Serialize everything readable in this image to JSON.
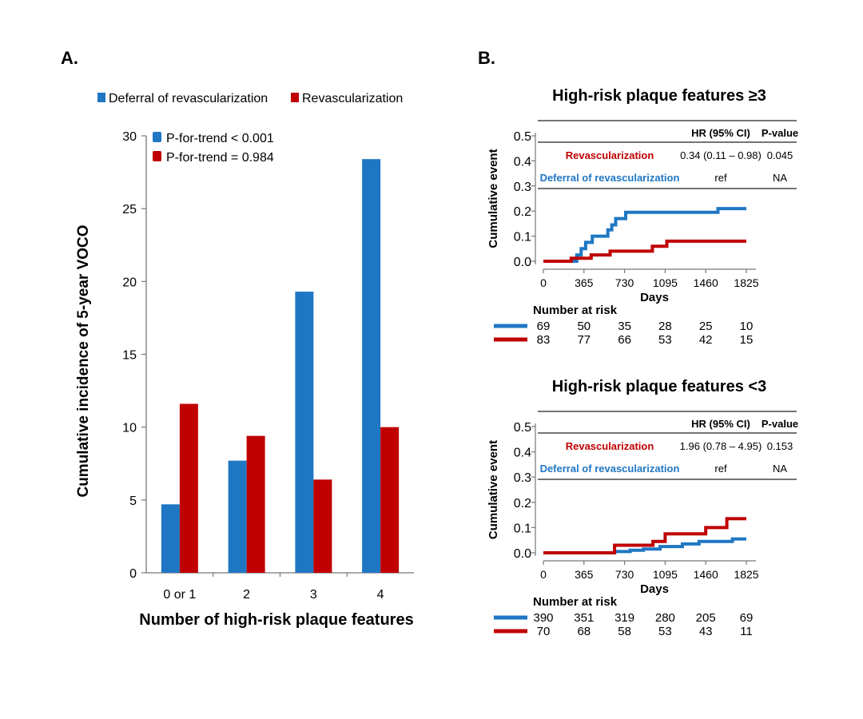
{
  "colors": {
    "blue": "#1f77c4",
    "red": "#c00000",
    "axis": "#777777"
  },
  "panel_a": {
    "label": "A.",
    "legend": [
      "Deferral of revascularization",
      "Revascularization"
    ],
    "trend": [
      "P-for-trend < 0.001",
      "P-for-trend = 0.984"
    ]
  },
  "panel_b": {
    "label": "B.",
    "table_headers": {
      "hr": "HR (95% CI)",
      "p": "P-value"
    },
    "at_risk_label": "Number at risk"
  },
  "chart_data": [
    {
      "type": "bar",
      "title": "",
      "xlabel": "Number of high-risk plaque features",
      "ylabel": "Cumulative incidence of 5-year VOCO",
      "categories": [
        "0 or 1",
        "2",
        "3",
        "4"
      ],
      "ylim": [
        0,
        30
      ],
      "yticks": [
        0,
        5,
        10,
        15,
        20,
        25,
        30
      ],
      "series": [
        {
          "name": "Deferral of revascularization",
          "color": "#1f77c4",
          "values": [
            4.7,
            7.7,
            19.3,
            28.4
          ]
        },
        {
          "name": "Revascularization",
          "color": "#c00000",
          "values": [
            11.6,
            9.4,
            6.4,
            10.0
          ]
        }
      ],
      "grid": false,
      "legend_position": "top"
    },
    {
      "type": "line",
      "title": "High-risk plaque features ≥3",
      "xlabel": "Days",
      "ylabel": "Cumulative event",
      "xlim": [
        0,
        1825
      ],
      "ylim": [
        0,
        0.5
      ],
      "xticks": [
        0,
        365,
        730,
        1095,
        1460,
        1825
      ],
      "yticks": [
        "0.0",
        "0.1",
        "0.2",
        "0.3",
        "0.4",
        "0.5"
      ],
      "table": [
        {
          "group": "Revascularization",
          "hr": "0.34 (0.11 – 0.98)",
          "p": "0.045"
        },
        {
          "group": "Deferral of revascularization",
          "hr": "ref",
          "p": "NA"
        }
      ],
      "series": [
        {
          "name": "Deferral of revascularization",
          "color": "#1f77c4",
          "x": [
            0,
            300,
            300,
            340,
            340,
            380,
            380,
            440,
            440,
            580,
            580,
            615,
            615,
            650,
            650,
            740,
            740,
            1570,
            1570,
            1825
          ],
          "y": [
            0,
            0,
            0.025,
            0.025,
            0.05,
            0.05,
            0.075,
            0.075,
            0.1,
            0.1,
            0.125,
            0.125,
            0.145,
            0.145,
            0.17,
            0.17,
            0.195,
            0.195,
            0.21,
            0.21
          ]
        },
        {
          "name": "Revascularization",
          "color": "#c00000",
          "x": [
            0,
            250,
            250,
            430,
            430,
            600,
            600,
            980,
            980,
            1110,
            1110,
            1825
          ],
          "y": [
            0,
            0,
            0.012,
            0.012,
            0.025,
            0.025,
            0.04,
            0.04,
            0.06,
            0.06,
            0.08,
            0.08
          ]
        }
      ],
      "at_risk": [
        {
          "series": "Deferral of revascularization",
          "color": "#1f77c4",
          "values": [
            "69",
            "50",
            "35",
            "28",
            "25",
            "10"
          ]
        },
        {
          "series": "Revascularization",
          "color": "#c00000",
          "values": [
            "83",
            "77",
            "66",
            "53",
            "42",
            "15"
          ]
        }
      ]
    },
    {
      "type": "line",
      "title": "High-risk plaque features <3",
      "xlabel": "Days",
      "ylabel": "Cumulative event",
      "xlim": [
        0,
        1825
      ],
      "ylim": [
        0,
        0.5
      ],
      "xticks": [
        0,
        365,
        730,
        1095,
        1460,
        1825
      ],
      "yticks": [
        "0.0",
        "0.1",
        "0.2",
        "0.3",
        "0.4",
        "0.5"
      ],
      "table": [
        {
          "group": "Revascularization",
          "hr": "1.96 (0.78 – 4.95)",
          "p": "0.153"
        },
        {
          "group": "Deferral of revascularization",
          "hr": "ref",
          "p": "NA"
        }
      ],
      "series": [
        {
          "name": "Deferral of revascularization",
          "color": "#1f77c4",
          "x": [
            0,
            640,
            640,
            780,
            780,
            900,
            900,
            1050,
            1050,
            1250,
            1250,
            1400,
            1400,
            1700,
            1700,
            1825
          ],
          "y": [
            0,
            0,
            0.005,
            0.005,
            0.01,
            0.01,
            0.015,
            0.015,
            0.025,
            0.025,
            0.035,
            0.035,
            0.045,
            0.045,
            0.055,
            0.055
          ]
        },
        {
          "name": "Revascularization",
          "color": "#c00000",
          "x": [
            0,
            640,
            640,
            985,
            985,
            1095,
            1095,
            1460,
            1460,
            1650,
            1650,
            1825
          ],
          "y": [
            0,
            0,
            0.03,
            0.03,
            0.045,
            0.045,
            0.075,
            0.075,
            0.1,
            0.1,
            0.135,
            0.135
          ]
        }
      ],
      "at_risk": [
        {
          "series": "Deferral of revascularization",
          "color": "#1f77c4",
          "values": [
            "390",
            "351",
            "319",
            "280",
            "205",
            "69"
          ]
        },
        {
          "series": "Revascularization",
          "color": "#c00000",
          "values": [
            "70",
            "68",
            "58",
            "53",
            "43",
            "11"
          ]
        }
      ]
    }
  ]
}
